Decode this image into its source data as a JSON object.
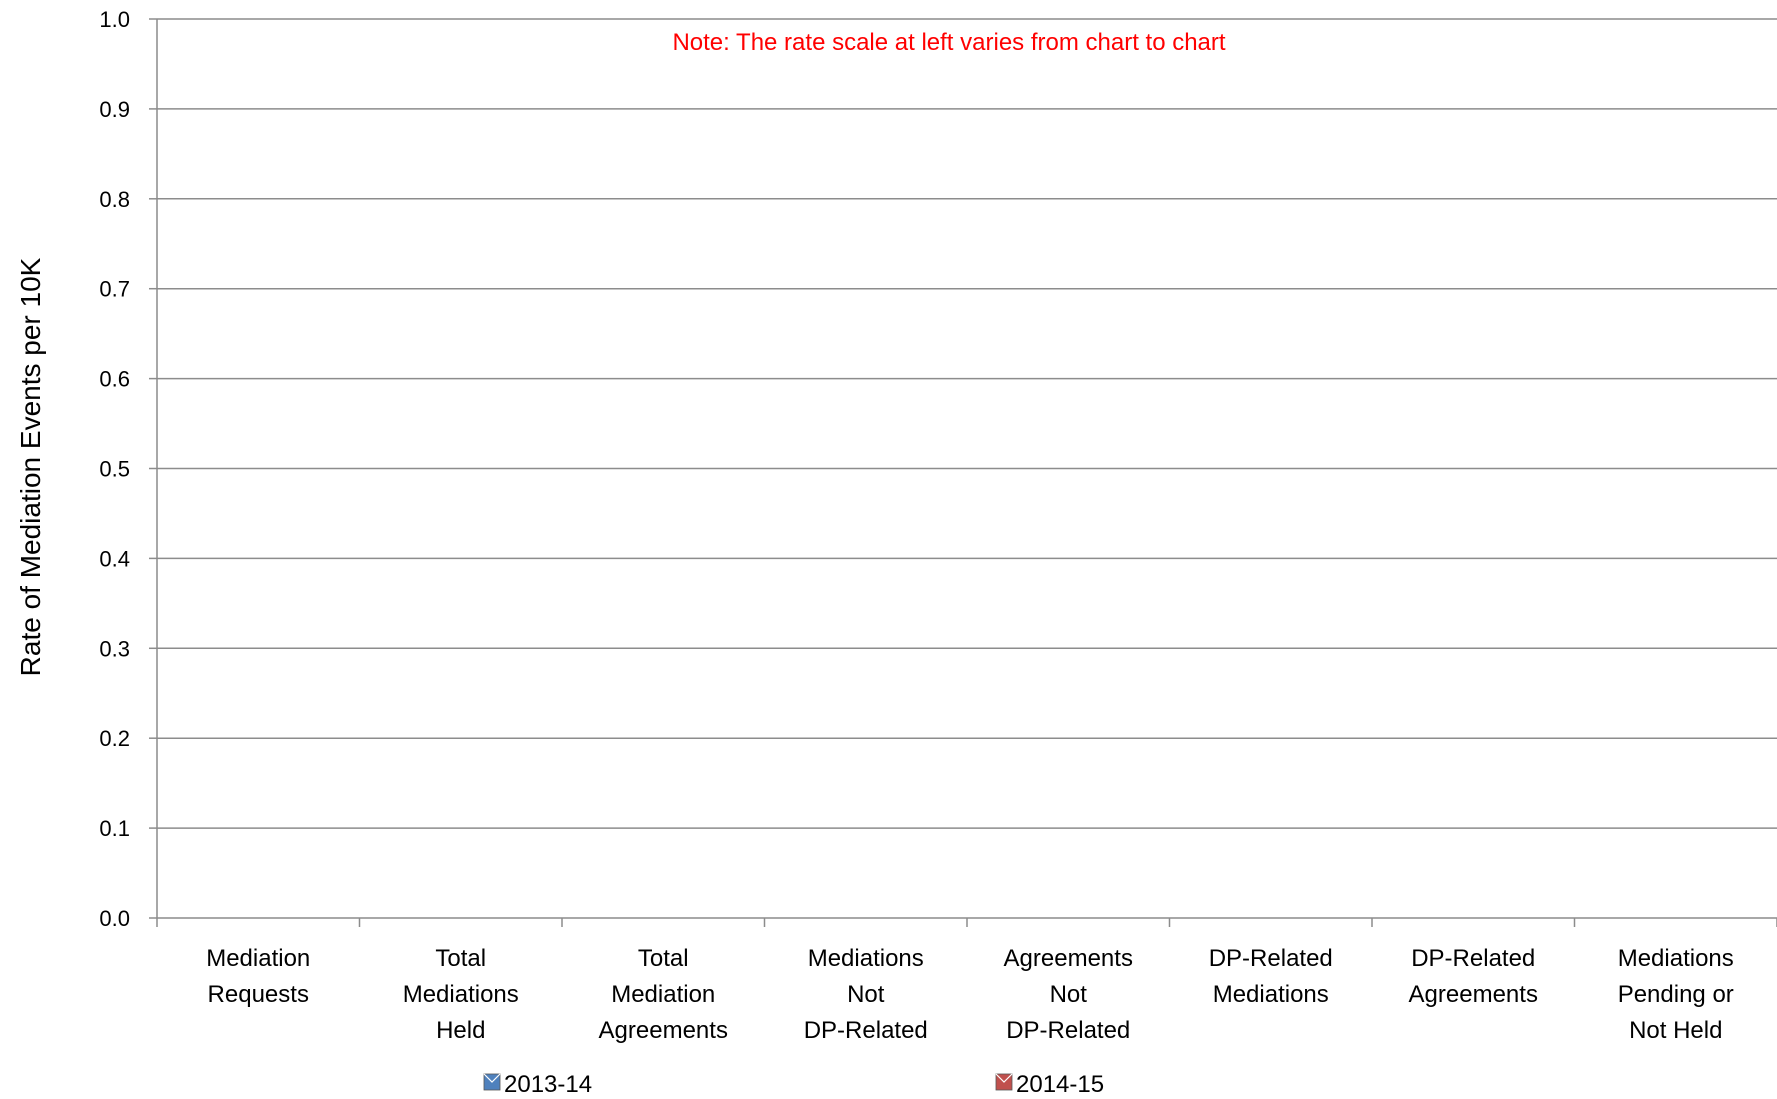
{
  "chart_data": {
    "type": "bar",
    "title": "",
    "note": "Note:  The rate scale at left varies from chart to chart",
    "note_color": "#FF0000",
    "ylabel": "Rate of Mediation Events per 10K",
    "xlabel": "",
    "ylim": [
      0,
      1.0
    ],
    "yticks": [
      "0.0",
      "0.1",
      "0.2",
      "0.3",
      "0.4",
      "0.5",
      "0.6",
      "0.7",
      "0.8",
      "0.9",
      "1.0"
    ],
    "grid": true,
    "legend_position": "bottom",
    "categories": [
      [
        "Mediation",
        "Requests"
      ],
      [
        "Total",
        "Mediations",
        "Held"
      ],
      [
        "Total",
        "Mediation",
        "Agreements"
      ],
      [
        "Mediations",
        "Not",
        "DP-Related"
      ],
      [
        "Agreements",
        "Not",
        "DP-Related"
      ],
      [
        "DP-Related",
        "Mediations"
      ],
      [
        "DP-Related",
        "Agreements"
      ],
      [
        "Mediations",
        "Pending or",
        "Not Held"
      ]
    ],
    "series": [
      {
        "name": "2013-14",
        "color": "#4F81BD",
        "values": [
          0,
          0,
          0,
          0,
          0,
          0,
          0,
          0
        ]
      },
      {
        "name": "2014-15",
        "color": "#C0504D",
        "values": [
          0,
          0,
          0,
          0,
          0,
          0,
          0,
          0
        ]
      }
    ]
  }
}
